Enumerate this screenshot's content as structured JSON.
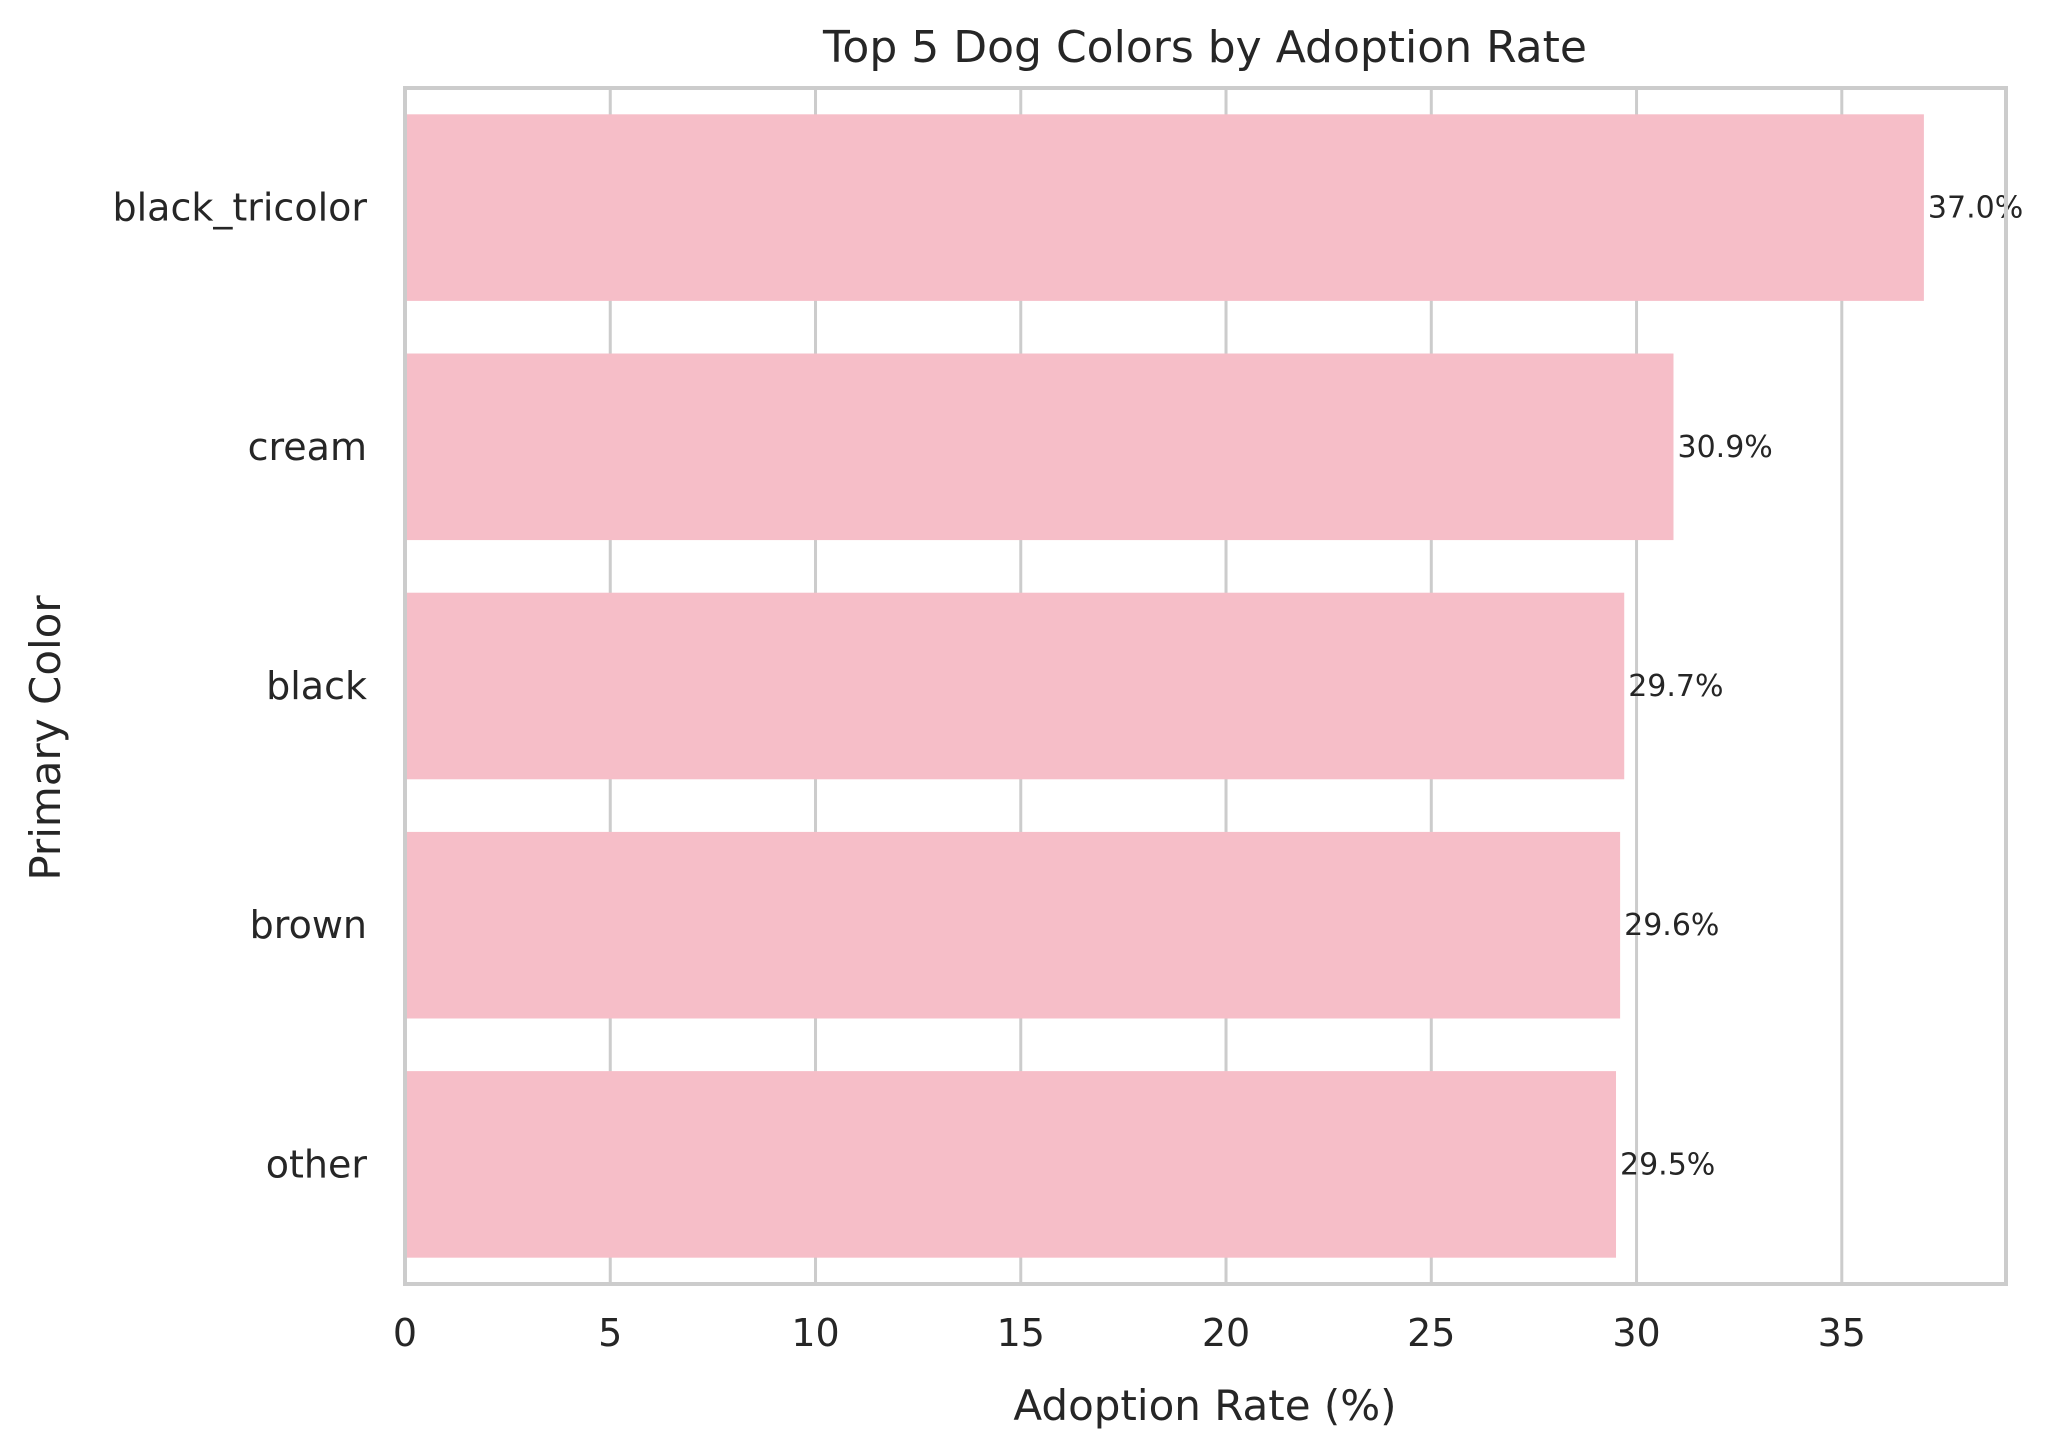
{
  "chart_data": {
    "type": "bar",
    "orientation": "horizontal",
    "title": "Top 5 Dog Colors by Adoption Rate",
    "xlabel": "Adoption Rate (%)",
    "ylabel": "Primary Color",
    "categories": [
      "black_tricolor",
      "cream",
      "black",
      "brown",
      "other"
    ],
    "values": [
      37.0,
      30.9,
      29.7,
      29.6,
      29.5
    ],
    "data_labels": [
      "37.0%",
      "30.9%",
      "29.7%",
      "29.6%",
      "29.5%"
    ],
    "xlim": [
      0,
      39
    ],
    "xticks": [
      0,
      5,
      10,
      15,
      20,
      25,
      30,
      35
    ],
    "grid": true,
    "bar_color": "#f6bec8"
  }
}
